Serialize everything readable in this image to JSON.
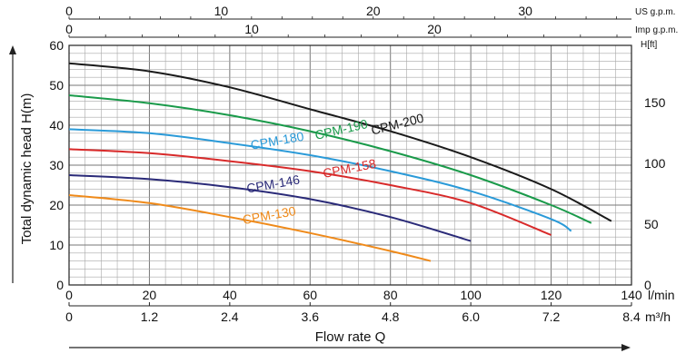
{
  "chart_data": {
    "type": "line",
    "ylabel": "Total dynamic head H(m)",
    "xlabel": "Flow rate Q",
    "x_unit_lmin": "l/min",
    "x_unit_m3h": "m³/h",
    "top_unit_us": "US g.p.m.",
    "top_unit_imp": "Imp g.p.m.",
    "right_unit": "H[ft]",
    "xlim": [
      0,
      140
    ],
    "ylim": [
      0,
      60
    ],
    "grid": true,
    "x_ticks_lmin": [
      "0",
      "20",
      "40",
      "60",
      "80",
      "100",
      "120",
      "140"
    ],
    "x_ticks_m3h": [
      "0",
      "1.2",
      "2.4",
      "3.6",
      "4.8",
      "6.0",
      "7.2",
      "8.4"
    ],
    "top_ticks_us": [
      "0",
      "10",
      "20",
      "30"
    ],
    "top_ticks_imp": [
      "0",
      "10",
      "20"
    ],
    "y_ticks": [
      "0",
      "10",
      "20",
      "30",
      "40",
      "50",
      "60"
    ],
    "right_ticks_ft": [
      "0",
      "50",
      "100",
      "150"
    ],
    "series": [
      {
        "name": "CPM-200",
        "color": "#1a1a1a",
        "x": [
          0,
          20,
          40,
          60,
          80,
          100,
          120,
          135
        ],
        "y": [
          55.5,
          53.5,
          49.5,
          44,
          38.5,
          32,
          24,
          16
        ]
      },
      {
        "name": "CPM-190",
        "color": "#1a9a4a",
        "x": [
          0,
          20,
          40,
          60,
          80,
          100,
          120,
          130
        ],
        "y": [
          47.5,
          45.5,
          42.5,
          38.5,
          33.5,
          27.5,
          20,
          15.5
        ]
      },
      {
        "name": "CPM-180",
        "color": "#2a9ad8",
        "x": [
          0,
          20,
          40,
          60,
          80,
          100,
          120,
          125
        ],
        "y": [
          39,
          38,
          35.5,
          32.5,
          28.5,
          23.5,
          16.5,
          13.5
        ]
      },
      {
        "name": "CPM-158",
        "color": "#d82a2a",
        "x": [
          0,
          20,
          40,
          60,
          80,
          100,
          120
        ],
        "y": [
          34,
          33,
          31,
          28.5,
          25,
          20.5,
          12.5
        ]
      },
      {
        "name": "CPM-146",
        "color": "#2a2a78",
        "x": [
          0,
          20,
          40,
          60,
          80,
          100
        ],
        "y": [
          27.5,
          26.5,
          24.5,
          21.5,
          17,
          11
        ]
      },
      {
        "name": "CPM-130",
        "color": "#ef8a1a",
        "x": [
          0,
          20,
          40,
          60,
          80,
          90
        ],
        "y": [
          22.5,
          20.5,
          17,
          13,
          8.5,
          6
        ]
      }
    ]
  }
}
